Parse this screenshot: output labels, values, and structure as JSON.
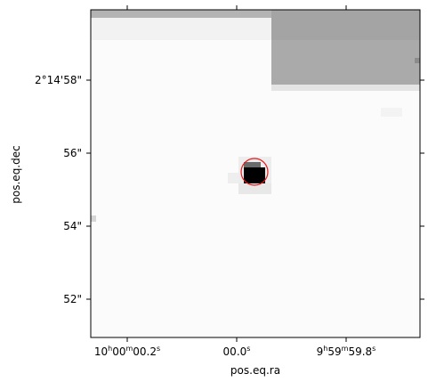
{
  "axes": {
    "xlabel": "pos.eq.ra",
    "ylabel": "pos.eq.dec",
    "xticks": [
      {
        "main": "10",
        "sup1": "h",
        "mid": "00",
        "sup2": "m",
        "tail": "00.2",
        "sup3": "s"
      },
      {
        "main": "",
        "sup1": "",
        "mid": "",
        "sup2": "",
        "tail": "00.0",
        "sup3": "s"
      },
      {
        "main": "9",
        "sup1": "h",
        "mid": "59",
        "sup2": "m",
        "tail": "59.8",
        "sup3": "s"
      }
    ],
    "yticks": [
      "2°14'58\"",
      "56\"",
      "54\"",
      "52\""
    ]
  },
  "image": {
    "description_marker": "red-circle",
    "marker_color": "#e31a1c",
    "source_color": "#000000",
    "background_color": "#fbfbfb",
    "saturated_patch_color": "#a9a9a9"
  }
}
